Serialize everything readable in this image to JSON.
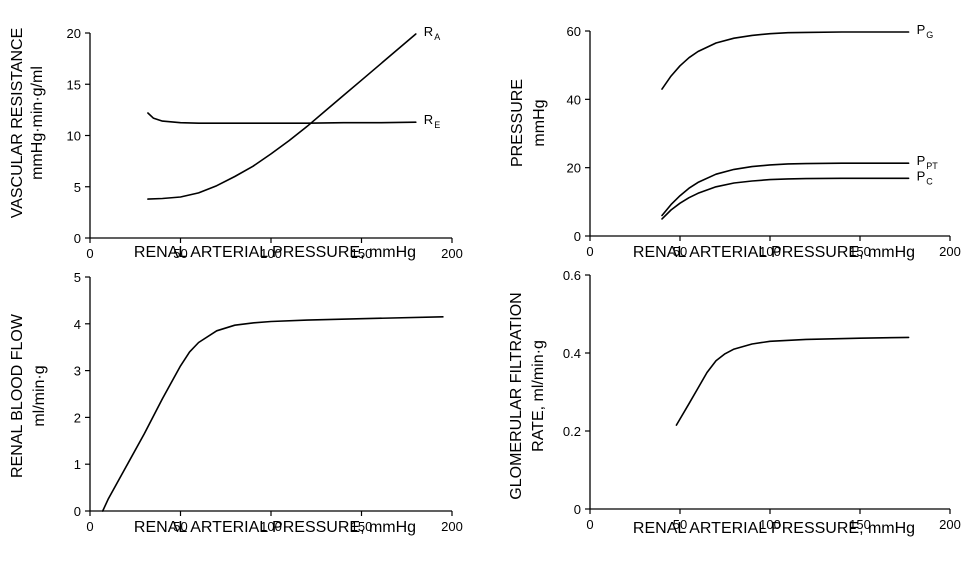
{
  "chart_data": [
    {
      "type": "line",
      "xlabel": "RENAL ARTERIAL PRESSURE, mmHg",
      "ylabel_lines": [
        "VASCULAR RESISTANCE",
        "mmHg·min·g/ml"
      ],
      "xlim": [
        0,
        200
      ],
      "ylim": [
        0,
        20
      ],
      "xticks": [
        0,
        50,
        100,
        150,
        200
      ],
      "yticks": [
        0,
        5,
        10,
        15,
        20
      ],
      "grid": false,
      "series": [
        {
          "name": "R",
          "sub": "A",
          "x": [
            32,
            40,
            50,
            60,
            70,
            80,
            90,
            100,
            110,
            120,
            130,
            140,
            150,
            160,
            170,
            180
          ],
          "y": [
            3.8,
            3.85,
            4.0,
            4.4,
            5.1,
            6.0,
            7.0,
            8.2,
            9.5,
            10.9,
            12.4,
            13.9,
            15.4,
            16.9,
            18.4,
            19.9
          ]
        },
        {
          "name": "R",
          "sub": "E",
          "x": [
            32,
            35,
            40,
            50,
            60,
            80,
            100,
            120,
            140,
            160,
            180
          ],
          "y": [
            12.2,
            11.7,
            11.4,
            11.25,
            11.2,
            11.2,
            11.2,
            11.2,
            11.25,
            11.25,
            11.3
          ]
        }
      ]
    },
    {
      "type": "line",
      "xlabel": "RENAL ARTERIAL PRESSURE, mmHg",
      "ylabel_lines": [
        "PRESSURE",
        "mmHg"
      ],
      "xlim": [
        0,
        200
      ],
      "ylim": [
        0,
        60
      ],
      "xticks": [
        0,
        50,
        100,
        150,
        200
      ],
      "yticks": [
        0,
        20,
        40,
        60
      ],
      "grid": false,
      "series": [
        {
          "name": "P",
          "sub": "G",
          "x": [
            40,
            45,
            50,
            55,
            60,
            70,
            80,
            90,
            100,
            110,
            120,
            140,
            160,
            177
          ],
          "y": [
            43,
            46.8,
            49.8,
            52.2,
            54,
            56.5,
            57.9,
            58.7,
            59.2,
            59.5,
            59.6,
            59.7,
            59.7,
            59.7
          ]
        },
        {
          "name": "P",
          "sub": "PT",
          "x": [
            40,
            45,
            50,
            55,
            60,
            70,
            80,
            90,
            100,
            110,
            120,
            140,
            160,
            177
          ],
          "y": [
            6,
            9.2,
            11.8,
            14,
            15.7,
            18.1,
            19.5,
            20.3,
            20.8,
            21.1,
            21.2,
            21.3,
            21.3,
            21.3
          ]
        },
        {
          "name": "P",
          "sub": "C",
          "x": [
            40,
            45,
            50,
            55,
            60,
            70,
            80,
            90,
            100,
            110,
            120,
            140,
            160,
            177
          ],
          "y": [
            5,
            7.6,
            9.6,
            11.2,
            12.5,
            14.4,
            15.5,
            16.1,
            16.5,
            16.7,
            16.8,
            16.9,
            16.9,
            16.9
          ]
        }
      ]
    },
    {
      "type": "line",
      "xlabel": "RENAL ARTERIAL PRESSURE, mmHg",
      "ylabel_lines": [
        "RENAL BLOOD FLOW",
        "ml/min·g"
      ],
      "xlim": [
        0,
        200
      ],
      "ylim": [
        0,
        5
      ],
      "xticks": [
        0,
        50,
        100,
        150,
        200
      ],
      "yticks": [
        0,
        1,
        2,
        3,
        4,
        5
      ],
      "grid": false,
      "series": [
        {
          "name": "",
          "sub": "",
          "x": [
            7,
            10,
            20,
            30,
            40,
            50,
            55,
            60,
            70,
            80,
            90,
            100,
            120,
            150,
            195
          ],
          "y": [
            0,
            0.25,
            0.95,
            1.65,
            2.4,
            3.1,
            3.4,
            3.6,
            3.85,
            3.97,
            4.02,
            4.05,
            4.08,
            4.11,
            4.15
          ]
        }
      ]
    },
    {
      "type": "line",
      "xlabel": "RENAL ARTERIAL PRESSURE, mmHg",
      "ylabel_lines": [
        "GLOMERULAR FILTRATION",
        "RATE, ml/min·g"
      ],
      "xlim": [
        0,
        200
      ],
      "ylim": [
        0,
        0.6
      ],
      "xticks": [
        0,
        50,
        100,
        150,
        200
      ],
      "yticks": [
        0,
        0.2,
        0.4,
        0.6
      ],
      "grid": false,
      "series": [
        {
          "name": "",
          "sub": "",
          "x": [
            48,
            55,
            60,
            65,
            70,
            75,
            80,
            90,
            100,
            120,
            150,
            177
          ],
          "y": [
            0.215,
            0.27,
            0.31,
            0.35,
            0.38,
            0.398,
            0.41,
            0.423,
            0.43,
            0.435,
            0.438,
            0.44
          ]
        }
      ]
    }
  ]
}
